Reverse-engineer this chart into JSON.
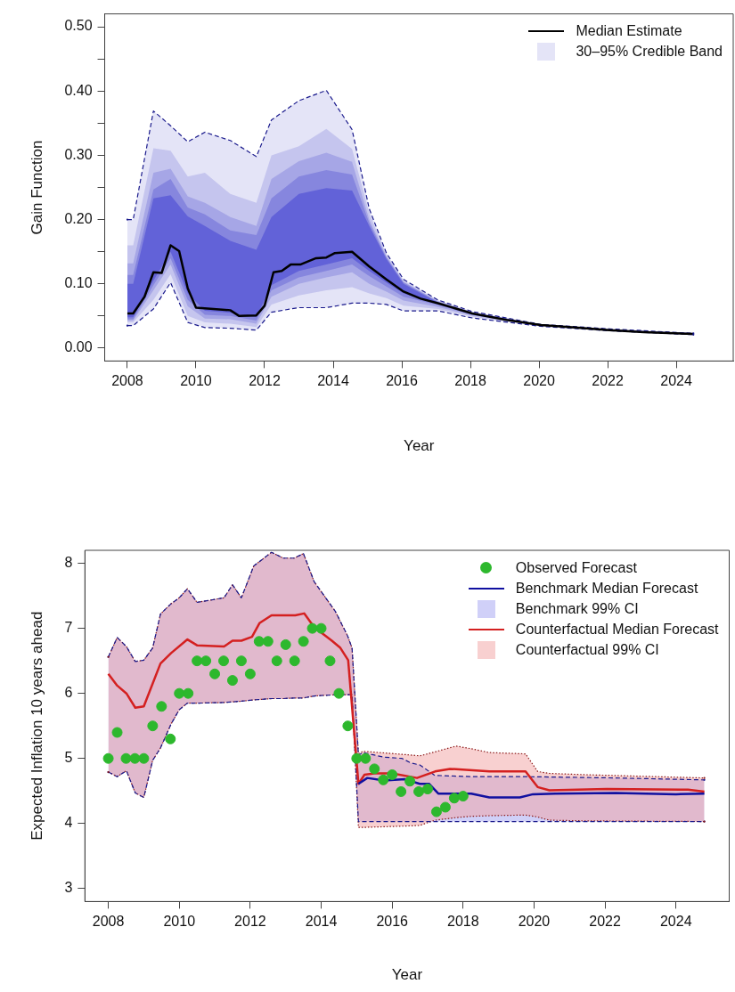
{
  "chart_data": [
    {
      "type": "line",
      "xlabel": "Year",
      "ylabel": "Gain Function",
      "legend": "top right",
      "xlim": [
        2007.34,
        2025.66
      ],
      "ylim": [
        -0.02,
        0.52
      ],
      "xticks": [
        2008,
        2010,
        2012,
        2014,
        2016,
        2018,
        2020,
        2022,
        2024
      ],
      "yticks": [
        {
          "value": 0,
          "label": "0.00"
        },
        {
          "value": 0.05,
          "label": null
        },
        {
          "value": 0.1,
          "label": "0.10"
        },
        {
          "value": 0.15,
          "label": null
        },
        {
          "value": 0.2,
          "label": "0.20"
        },
        {
          "value": 0.25,
          "label": null
        },
        {
          "value": 0.3,
          "label": "0.30"
        },
        {
          "value": 0.35,
          "label": null
        },
        {
          "value": 0.4,
          "label": "0.40"
        },
        {
          "value": 0.45,
          "label": null
        },
        {
          "value": 0.5,
          "label": "0.50"
        }
      ],
      "series": [
        {
          "name": "Median Estimate",
          "type": "line",
          "color": "#000000",
          "x": [
            2008.0,
            2008.17,
            2008.5,
            2008.76,
            2009.0,
            2009.26,
            2009.51,
            2009.76,
            2010.0,
            2011.0,
            2011.26,
            2011.76,
            2012.0,
            2012.26,
            2012.5,
            2012.76,
            2013.04,
            2013.5,
            2013.8,
            2014.05,
            2014.55,
            2015.05,
            2015.55,
            2016.05,
            2016.55,
            2017.05,
            2018.05,
            2019.05,
            2020.05,
            2021.05,
            2022.05,
            2023.05,
            2024.5
          ],
          "values": [
            0.054,
            0.054,
            0.08,
            0.118,
            0.117,
            0.16,
            0.151,
            0.093,
            0.063,
            0.059,
            0.05,
            0.051,
            0.066,
            0.118,
            0.12,
            0.13,
            0.13,
            0.14,
            0.141,
            0.148,
            0.15,
            0.127,
            0.107,
            0.088,
            0.077,
            0.07,
            0.054,
            0.044,
            0.036,
            0.032,
            0.028,
            0.025,
            0.022
          ]
        },
        {
          "type": "line",
          "color": "#1a1a8c",
          "line_style": "dashed",
          "x": [
            2008,
            2008.17,
            2008.76,
            2009.26,
            2009.76,
            2010.26,
            2011.0,
            2011.76,
            2012.2,
            2013.0,
            2013.8,
            2014.55,
            2015.05,
            2015.55,
            2016.05,
            2017.05,
            2018.05,
            2020.05,
            2022.05,
            2024.5
          ],
          "values": [
            0.2,
            0.2,
            0.369,
            0.346,
            0.321,
            0.336,
            0.323,
            0.298,
            0.355,
            0.385,
            0.401,
            0.34,
            0.217,
            0.148,
            0.107,
            0.075,
            0.057,
            0.037,
            0.03,
            0.023
          ]
        },
        {
          "type": "line",
          "color": "#1a1a8c",
          "line_style": "dashed",
          "x": [
            2008,
            2008.17,
            2008.76,
            2009.26,
            2009.76,
            2010.26,
            2011.0,
            2011.76,
            2012.2,
            2013.0,
            2013.8,
            2014.55,
            2015.05,
            2015.55,
            2016.05,
            2017.05,
            2018.05,
            2020.05,
            2022.05,
            2024.5
          ],
          "values": [
            0.035,
            0.035,
            0.061,
            0.102,
            0.04,
            0.032,
            0.031,
            0.028,
            0.056,
            0.063,
            0.063,
            0.07,
            0.07,
            0.068,
            0.058,
            0.058,
            0.047,
            0.034,
            0.027,
            0.021
          ]
        },
        {
          "name": "30–95% Credible Band",
          "type": "line",
          "color": "#e4e4f7",
          "x": [
            2008,
            2008.17,
            2008.76,
            2009.26,
            2009.76,
            2010.26,
            2011.0,
            2011.76,
            2012.2,
            2013.0,
            2013.8,
            2014.55,
            2015.05,
            2015.55,
            2016.05,
            2017.05,
            2018.05,
            2020.05,
            2022.05,
            2024.5
          ],
          "values": [
            null,
            null,
            null,
            null,
            null,
            null,
            null,
            null,
            null,
            null,
            null,
            null,
            null,
            null,
            null,
            null,
            null,
            null,
            null,
            null
          ],
          "upper": [
            0.2,
            0.2,
            0.369,
            0.346,
            0.321,
            0.336,
            0.323,
            0.298,
            0.355,
            0.385,
            0.401,
            0.34,
            0.217,
            0.148,
            0.107,
            0.075,
            0.057,
            0.037,
            0.03,
            0.023
          ],
          "lower": [
            0.035,
            0.035,
            0.061,
            0.102,
            0.04,
            0.032,
            0.031,
            0.028,
            0.056,
            0.063,
            0.063,
            0.07,
            0.07,
            0.068,
            0.058,
            0.058,
            0.047,
            0.034,
            0.027,
            0.021
          ]
        },
        {
          "type": "line",
          "color": "#c5c5ee",
          "x": [
            2008,
            2008.17,
            2008.76,
            2009.26,
            2009.76,
            2010.26,
            2011.0,
            2011.76,
            2012.2,
            2013.0,
            2013.8,
            2014.55,
            2015.05,
            2015.55,
            2016.05,
            2017.05,
            2018.05,
            2020.05,
            2022.05,
            2024.5
          ],
          "values": [
            null,
            null,
            null,
            null,
            null,
            null,
            null,
            null,
            null,
            null,
            null,
            null,
            null,
            null,
            null,
            null,
            null,
            null,
            null,
            null
          ],
          "upper": [
            0.16,
            0.16,
            0.311,
            0.307,
            0.267,
            0.273,
            0.24,
            0.226,
            0.3,
            0.314,
            0.341,
            0.31,
            0.21,
            0.145,
            0.105,
            0.074,
            0.056,
            0.037,
            0.029,
            0.023
          ],
          "lower": [
            0.04,
            0.04,
            0.075,
            0.115,
            0.05,
            0.04,
            0.038,
            0.033,
            0.068,
            0.082,
            0.09,
            0.095,
            0.085,
            0.078,
            0.066,
            0.061,
            0.049,
            0.034,
            0.027,
            0.021
          ]
        },
        {
          "type": "line",
          "color": "#a6a6e6",
          "x": [
            2008,
            2008.17,
            2008.76,
            2009.26,
            2009.76,
            2010.26,
            2011.0,
            2011.76,
            2012.2,
            2013.0,
            2013.8,
            2014.55,
            2015.05,
            2015.55,
            2016.05,
            2017.05,
            2018.05,
            2020.05,
            2022.05,
            2024.5
          ],
          "values": [
            null,
            null,
            null,
            null,
            null,
            null,
            null,
            null,
            null,
            null,
            null,
            null,
            null,
            null,
            null,
            null,
            null,
            null,
            null,
            null
          ],
          "upper": [
            0.132,
            0.132,
            0.273,
            0.279,
            0.236,
            0.226,
            0.204,
            0.19,
            0.263,
            0.291,
            0.304,
            0.29,
            0.2,
            0.143,
            0.103,
            0.073,
            0.056,
            0.036,
            0.029,
            0.023
          ],
          "lower": [
            0.043,
            0.043,
            0.09,
            0.13,
            0.065,
            0.046,
            0.045,
            0.038,
            0.08,
            0.1,
            0.11,
            0.118,
            0.1,
            0.088,
            0.074,
            0.064,
            0.051,
            0.035,
            0.028,
            0.022
          ]
        },
        {
          "type": "line",
          "color": "#8686de",
          "x": [
            2008,
            2008.17,
            2008.76,
            2009.26,
            2009.76,
            2010.26,
            2011.0,
            2011.76,
            2012.2,
            2013.0,
            2013.8,
            2014.55,
            2015.05,
            2015.55,
            2016.05,
            2017.05,
            2018.05,
            2020.05,
            2022.05,
            2024.5
          ],
          "values": [
            null,
            null,
            null,
            null,
            null,
            null,
            null,
            null,
            null,
            null,
            null,
            null,
            null,
            null,
            null,
            null,
            null,
            null,
            null,
            null
          ],
          "upper": [
            0.114,
            0.114,
            0.247,
            0.263,
            0.219,
            0.208,
            0.183,
            0.176,
            0.233,
            0.267,
            0.277,
            0.27,
            0.195,
            0.141,
            0.102,
            0.072,
            0.055,
            0.036,
            0.029,
            0.023
          ],
          "lower": [
            0.045,
            0.045,
            0.098,
            0.14,
            0.075,
            0.052,
            0.05,
            0.043,
            0.09,
            0.11,
            0.12,
            0.13,
            0.112,
            0.096,
            0.08,
            0.067,
            0.052,
            0.035,
            0.028,
            0.022
          ]
        },
        {
          "type": "line",
          "color": "#6262d8",
          "x": [
            2008,
            2008.17,
            2008.76,
            2009.26,
            2009.76,
            2010.26,
            2011.0,
            2011.76,
            2012.2,
            2013.0,
            2013.8,
            2014.55,
            2015.05,
            2015.55,
            2016.05,
            2017.05,
            2018.05,
            2020.05,
            2022.05,
            2024.5
          ],
          "values": [
            null,
            null,
            null,
            null,
            null,
            null,
            null,
            null,
            null,
            null,
            null,
            null,
            null,
            null,
            null,
            null,
            null,
            null,
            null,
            null
          ],
          "upper": [
            0.1,
            0.1,
            0.233,
            0.238,
            0.205,
            0.19,
            0.167,
            0.153,
            0.204,
            0.24,
            0.249,
            0.245,
            0.19,
            0.139,
            0.1,
            0.071,
            0.055,
            0.036,
            0.029,
            0.023
          ],
          "lower": [
            0.048,
            0.048,
            0.105,
            0.15,
            0.085,
            0.058,
            0.055,
            0.048,
            0.098,
            0.12,
            0.13,
            0.14,
            0.12,
            0.102,
            0.085,
            0.069,
            0.053,
            0.036,
            0.028,
            0.022
          ]
        }
      ]
    },
    {
      "type": "line",
      "xlabel": "Year",
      "ylabel": "Expected Inflation 10 years ahead",
      "legend": "top right",
      "xlim": [
        2007.34,
        2025.5
      ],
      "ylim": [
        2.8,
        8.2
      ],
      "xticks": [
        2008,
        2010,
        2012,
        2014,
        2016,
        2018,
        2020,
        2022,
        2024
      ],
      "yticks": [
        3,
        4,
        5,
        6,
        7,
        8
      ],
      "series": [
        {
          "name": "Observed Forecast",
          "type": "scatter",
          "marker": "circle",
          "color": "#2db82d",
          "x": [
            2008.0,
            2008.25,
            2008.5,
            2008.75,
            2009.0,
            2009.25,
            2009.5,
            2009.75,
            2010.0,
            2010.25,
            2010.5,
            2010.75,
            2011.0,
            2011.25,
            2011.5,
            2011.75,
            2012.0,
            2012.25,
            2012.5,
            2012.75,
            2013.0,
            2013.25,
            2013.5,
            2013.75,
            2014.0,
            2014.25,
            2014.5,
            2014.75,
            2015.0,
            2015.25,
            2015.5,
            2015.75,
            2016.0,
            2016.25,
            2016.5,
            2016.75,
            2017.0,
            2017.25,
            2017.5,
            2017.75,
            2018.0
          ],
          "values": [
            5.0,
            5.4,
            5.0,
            5.0,
            5.0,
            5.5,
            5.8,
            5.3,
            6.0,
            6.0,
            6.5,
            6.5,
            6.3,
            6.5,
            6.2,
            6.5,
            6.3,
            6.8,
            6.8,
            6.5,
            6.75,
            6.5,
            6.8,
            7.0,
            7.0,
            6.5,
            6.0,
            5.5,
            5.0,
            5.0,
            4.84,
            4.67,
            4.75,
            4.49,
            4.65,
            4.49,
            4.53,
            4.18,
            4.25,
            4.39,
            4.42
          ]
        },
        {
          "name": "Benchmark Median Forecast",
          "type": "line",
          "color": "#1010a0",
          "x": [
            2015.05,
            2015.3,
            2015.77,
            2016.36,
            2016.78,
            2017.04,
            2017.3,
            2018.23,
            2018.74,
            2019.6,
            2019.97,
            2020.6,
            2022.3,
            2024.0,
            2024.8
          ],
          "values": [
            4.61,
            4.7,
            4.66,
            4.68,
            4.61,
            4.61,
            4.46,
            4.46,
            4.4,
            4.4,
            4.45,
            4.46,
            4.47,
            4.45,
            4.46
          ]
        },
        {
          "name": "Benchmark 99% CI",
          "type": "line",
          "color": "#d0d0f8",
          "x": [
            2008.0,
            2008.25,
            2008.51,
            2008.76,
            2009.0,
            2009.25,
            2009.47,
            2009.77,
            2010.0,
            2010.23,
            2010.5,
            2011.26,
            2011.5,
            2011.75,
            2012.1,
            2012.6,
            2012.93,
            2013.24,
            2013.5,
            2013.8,
            2014.4,
            2014.74,
            2014.87,
            2015.05,
            2015.18,
            2015.77,
            2016.28,
            2016.53,
            2016.78,
            2017.2,
            2018.23,
            2019.76,
            2022.3,
            2024.8
          ],
          "values": [
            null,
            null,
            null,
            null,
            null,
            null,
            null,
            null,
            null,
            null,
            null,
            null,
            null,
            null,
            null,
            null,
            null,
            null,
            null,
            null,
            null,
            null,
            null,
            null,
            null,
            null,
            null,
            null,
            null,
            null,
            null,
            null,
            null,
            null
          ],
          "upper": [
            6.56,
            6.86,
            6.72,
            6.49,
            6.51,
            6.7,
            7.22,
            7.38,
            7.47,
            7.61,
            7.4,
            7.47,
            7.67,
            7.47,
            7.96,
            8.17,
            8.08,
            8.08,
            8.15,
            7.72,
            7.26,
            6.89,
            6.7,
            5.05,
            5.09,
            5.02,
            5.0,
            4.93,
            4.9,
            4.74,
            4.72,
            4.72,
            4.7,
            4.67
          ],
          "lower": [
            4.79,
            4.72,
            4.81,
            4.47,
            4.4,
            4.97,
            5.16,
            5.53,
            5.75,
            5.85,
            5.85,
            5.86,
            5.87,
            5.88,
            5.9,
            5.92,
            5.92,
            5.93,
            5.93,
            5.96,
            5.98,
            5.98,
            5.98,
            4.03,
            4.03,
            4.03,
            4.03,
            4.03,
            4.03,
            4.03,
            4.03,
            4.03,
            4.03,
            4.03
          ]
        },
        {
          "name": "Counterfactual Median Forecast",
          "type": "line",
          "color": "#d42020",
          "x": [
            2008.0,
            2008.25,
            2008.51,
            2008.76,
            2009.0,
            2009.47,
            2009.77,
            2010.23,
            2010.5,
            2011.26,
            2011.5,
            2011.75,
            2012.05,
            2012.26,
            2012.6,
            2013.27,
            2013.52,
            2013.8,
            2014.3,
            2014.54,
            2014.76,
            2015.05,
            2015.22,
            2015.5,
            2016.0,
            2016.7,
            2017.21,
            2017.63,
            2018.74,
            2019.76,
            2020.1,
            2020.43,
            2022.05,
            2024.34,
            2024.8
          ],
          "values": [
            6.3,
            6.12,
            6.0,
            5.78,
            5.8,
            6.46,
            6.62,
            6.83,
            6.74,
            6.72,
            6.81,
            6.81,
            6.87,
            7.08,
            7.2,
            7.2,
            7.23,
            7.02,
            6.81,
            6.7,
            6.51,
            4.61,
            4.75,
            4.77,
            4.77,
            4.7,
            4.8,
            4.84,
            4.8,
            4.8,
            4.56,
            4.51,
            4.53,
            4.52,
            4.49
          ]
        },
        {
          "name": "Counterfactual 99% CI",
          "type": "line",
          "color": "#f8d0d0",
          "x": [
            2008.0,
            2008.25,
            2008.51,
            2008.76,
            2009.0,
            2009.25,
            2009.47,
            2009.77,
            2010.0,
            2010.23,
            2010.5,
            2011.26,
            2011.5,
            2011.75,
            2012.1,
            2012.6,
            2012.93,
            2013.24,
            2013.5,
            2013.8,
            2014.4,
            2014.74,
            2014.87,
            2015.05,
            2015.18,
            2016.36,
            2016.78,
            2017.2,
            2017.8,
            2018.23,
            2018.74,
            2019.76,
            2020.1,
            2020.43,
            2021.45,
            2024.8
          ],
          "values": [
            null,
            null,
            null,
            null,
            null,
            null,
            null,
            null,
            null,
            null,
            null,
            null,
            null,
            null,
            null,
            null,
            null,
            null,
            null,
            null,
            null,
            null,
            null,
            null,
            null,
            null,
            null,
            null,
            null,
            null,
            null,
            null,
            null,
            null,
            null,
            null
          ],
          "upper": [
            6.56,
            6.86,
            6.72,
            6.49,
            6.51,
            6.7,
            7.22,
            7.38,
            7.47,
            7.61,
            7.4,
            7.47,
            7.67,
            7.47,
            7.96,
            8.17,
            8.08,
            8.08,
            8.15,
            7.72,
            7.26,
            6.89,
            6.7,
            5.07,
            5.11,
            5.06,
            5.04,
            5.1,
            5.19,
            5.15,
            5.09,
            5.07,
            4.8,
            4.77,
            4.75,
            4.7
          ],
          "lower": [
            4.79,
            4.72,
            4.81,
            4.47,
            4.4,
            4.97,
            5.16,
            5.53,
            5.75,
            5.85,
            5.85,
            5.86,
            5.87,
            5.88,
            5.9,
            5.92,
            5.92,
            5.93,
            5.93,
            5.96,
            5.98,
            5.98,
            5.98,
            3.94,
            3.94,
            3.96,
            3.97,
            4.05,
            4.09,
            4.11,
            4.12,
            4.13,
            4.1,
            4.05,
            4.04,
            4.03
          ]
        },
        {
          "type": "line",
          "color": "#1a1a8c",
          "line_style": "dashed",
          "x": [
            2008.0,
            2008.25,
            2008.51,
            2008.76,
            2009.0,
            2009.25,
            2009.47,
            2009.77,
            2010.0,
            2010.23,
            2010.5,
            2011.26,
            2011.5,
            2011.75,
            2012.1,
            2012.6,
            2012.93,
            2013.24,
            2013.5,
            2013.8,
            2014.4,
            2014.74,
            2014.87,
            2015.05,
            2015.18,
            2015.77,
            2016.28,
            2016.53,
            2016.78,
            2017.2,
            2018.23,
            2019.76,
            2022.3,
            2024.8
          ],
          "values": [
            6.56,
            6.86,
            6.72,
            6.49,
            6.51,
            6.7,
            7.22,
            7.38,
            7.47,
            7.61,
            7.4,
            7.47,
            7.67,
            7.47,
            7.96,
            8.17,
            8.08,
            8.08,
            8.15,
            7.72,
            7.26,
            6.89,
            6.7,
            5.05,
            5.09,
            5.02,
            5.0,
            4.93,
            4.9,
            4.74,
            4.72,
            4.72,
            4.7,
            4.67
          ]
        },
        {
          "type": "line",
          "color": "#1a1a8c",
          "line_style": "dashed",
          "x": [
            2008.0,
            2008.25,
            2008.51,
            2008.76,
            2009.0,
            2009.25,
            2009.47,
            2009.77,
            2010.0,
            2010.23,
            2010.5,
            2011.26,
            2011.5,
            2011.75,
            2012.1,
            2012.6,
            2012.93,
            2013.24,
            2013.5,
            2013.8,
            2014.4,
            2014.74,
            2014.87,
            2015.05,
            2015.18,
            2015.77,
            2016.28,
            2016.53,
            2016.78,
            2017.2,
            2018.23,
            2019.76,
            2022.3,
            2024.8
          ],
          "values": [
            4.79,
            4.72,
            4.81,
            4.47,
            4.4,
            4.97,
            5.16,
            5.53,
            5.75,
            5.85,
            5.85,
            5.86,
            5.87,
            5.88,
            5.9,
            5.92,
            5.92,
            5.93,
            5.93,
            5.96,
            5.98,
            5.98,
            5.98,
            4.03,
            4.03,
            4.03,
            4.03,
            4.03,
            4.03,
            4.03,
            4.03,
            4.03,
            4.03,
            4.03
          ]
        },
        {
          "type": "line",
          "color": "#8c1a1a",
          "line_style": "dotted",
          "x": [
            2008.0,
            2008.25,
            2008.51,
            2008.76,
            2009.0,
            2009.25,
            2009.47,
            2009.77,
            2010.0,
            2010.23,
            2010.5,
            2011.26,
            2011.5,
            2011.75,
            2012.1,
            2012.6,
            2012.93,
            2013.24,
            2013.5,
            2013.8,
            2014.4,
            2014.74,
            2014.87,
            2015.05,
            2015.18,
            2016.36,
            2016.78,
            2017.2,
            2017.8,
            2018.23,
            2018.74,
            2019.76,
            2020.1,
            2020.43,
            2021.45,
            2024.8
          ],
          "values": [
            6.56,
            6.86,
            6.72,
            6.49,
            6.51,
            6.7,
            7.22,
            7.38,
            7.47,
            7.61,
            7.4,
            7.47,
            7.67,
            7.47,
            7.96,
            8.17,
            8.08,
            8.08,
            8.15,
            7.72,
            7.26,
            6.89,
            6.7,
            5.07,
            5.11,
            5.06,
            5.04,
            5.1,
            5.19,
            5.15,
            5.09,
            5.07,
            4.8,
            4.77,
            4.75,
            4.7
          ]
        },
        {
          "type": "line",
          "color": "#8c1a1a",
          "line_style": "dotted",
          "x": [
            2008.0,
            2008.25,
            2008.51,
            2008.76,
            2009.0,
            2009.25,
            2009.47,
            2009.77,
            2010.0,
            2010.23,
            2010.5,
            2011.26,
            2011.5,
            2011.75,
            2012.1,
            2012.6,
            2012.93,
            2013.24,
            2013.5,
            2013.8,
            2014.4,
            2014.74,
            2014.87,
            2015.05,
            2015.18,
            2016.36,
            2016.78,
            2017.2,
            2017.8,
            2018.23,
            2018.74,
            2019.76,
            2020.1,
            2020.43,
            2021.45,
            2024.8
          ],
          "values": [
            4.79,
            4.72,
            4.81,
            4.47,
            4.4,
            4.97,
            5.16,
            5.53,
            5.75,
            5.85,
            5.85,
            5.86,
            5.87,
            5.88,
            5.9,
            5.92,
            5.92,
            5.93,
            5.93,
            5.96,
            5.98,
            5.98,
            5.98,
            3.94,
            3.94,
            3.96,
            3.97,
            4.05,
            4.09,
            4.11,
            4.12,
            4.13,
            4.1,
            4.05,
            4.04,
            4.03
          ]
        }
      ]
    }
  ]
}
